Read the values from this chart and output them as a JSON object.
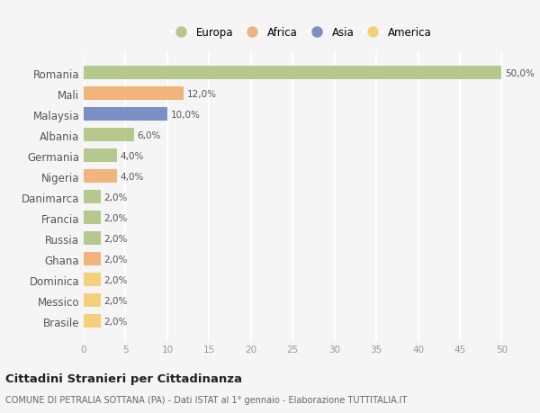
{
  "countries": [
    "Romania",
    "Mali",
    "Malaysia",
    "Albania",
    "Germania",
    "Nigeria",
    "Danimarca",
    "Francia",
    "Russia",
    "Ghana",
    "Dominica",
    "Messico",
    "Brasile"
  ],
  "values": [
    50.0,
    12.0,
    10.0,
    6.0,
    4.0,
    4.0,
    2.0,
    2.0,
    2.0,
    2.0,
    2.0,
    2.0,
    2.0
  ],
  "continents": [
    "Europa",
    "Africa",
    "Asia",
    "Europa",
    "Europa",
    "Africa",
    "Europa",
    "Europa",
    "Europa",
    "Africa",
    "America",
    "America",
    "America"
  ],
  "colors": {
    "Europa": "#b5c98e",
    "Africa": "#f0b47c",
    "Asia": "#7b8fc7",
    "America": "#f5d07a"
  },
  "legend_order": [
    "Europa",
    "Africa",
    "Asia",
    "America"
  ],
  "xlim": [
    0,
    52
  ],
  "xticks": [
    0,
    5,
    10,
    15,
    20,
    25,
    30,
    35,
    40,
    45,
    50
  ],
  "title": "Cittadini Stranieri per Cittadinanza",
  "subtitle": "COMUNE DI PETRALIA SOTTANA (PA) - Dati ISTAT al 1° gennaio - Elaborazione TUTTITALIA.IT",
  "bg_color": "#f5f5f5",
  "grid_color": "#ffffff",
  "bar_height": 0.65
}
